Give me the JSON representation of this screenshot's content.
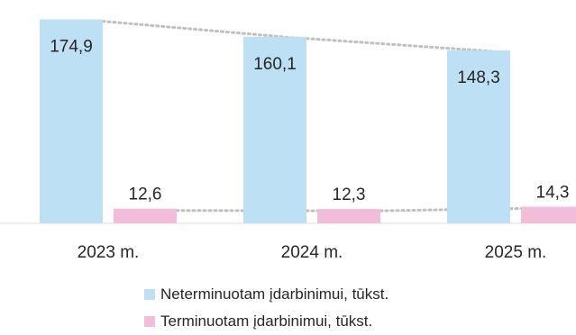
{
  "chart_data": {
    "type": "bar",
    "categories": [
      "2023 m.",
      "2024 m.",
      "2025 m."
    ],
    "series": [
      {
        "name": "Neterminuotam įdarbinimui, tūkst.",
        "values": [
          174.9,
          160.1,
          148.3
        ],
        "labels": [
          "174,9",
          "160,1",
          "148,3"
        ],
        "color": "#bde0f5"
      },
      {
        "name": "Terminuotam įdarbinimui, tūkst.",
        "values": [
          12.6,
          12.3,
          14.3
        ],
        "labels": [
          "12,6",
          "12,3",
          "14,3"
        ],
        "color": "#f2bdd9"
      }
    ],
    "trendlines": "dotted",
    "ylim": [
      0,
      180
    ],
    "grid": false,
    "legend": "bottom"
  },
  "colors": {
    "trend": "#bfbfbf",
    "axis": "#d9d9d9",
    "text": "#262626"
  }
}
